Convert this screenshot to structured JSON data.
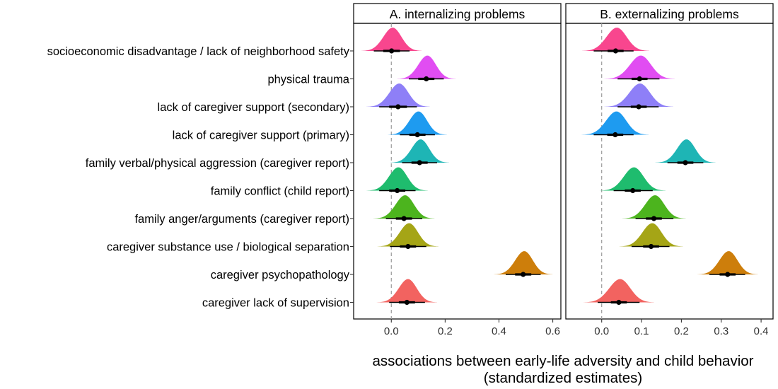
{
  "chart_data": {
    "type": "ridgeline",
    "xlabel": [
      "associations between early-life adversity and child behavior",
      "(standardized estimates)"
    ],
    "categories": [
      "socioeconomic disadvantage / lack of neighborhood safety",
      "physical trauma",
      "lack of caregiver support (secondary)",
      "lack of caregiver support (primary)",
      "family verbal/physical aggression (caregiver report)",
      "family conflict (child report)",
      "family anger/arguments (caregiver report)",
      "caregiver substance use / biological separation",
      "caregiver psychopathology",
      "caregiver lack of supervision"
    ],
    "colors": [
      "#F8468E",
      "#E14DF2",
      "#8E7FF7",
      "#1E9BF0",
      "#1EB5B5",
      "#1FBC6E",
      "#4CB41E",
      "#A5A516",
      "#CD7E0B",
      "#F26360"
    ],
    "panels": [
      {
        "title": "A. internalizing problems",
        "xlim": [
          -0.14,
          0.63
        ],
        "ticks": [
          0.0,
          0.2,
          0.4,
          0.6
        ],
        "tick_labels": [
          "0.0",
          "0.2",
          "0.4",
          "0.6"
        ],
        "estimates": [
          0.001,
          0.13,
          0.025,
          0.097,
          0.105,
          0.022,
          0.047,
          0.062,
          0.49,
          0.058
        ],
        "ci66": [
          [
            -0.03,
            0.032
          ],
          [
            0.1,
            0.16
          ],
          [
            -0.008,
            0.058
          ],
          [
            0.067,
            0.127
          ],
          [
            0.075,
            0.135
          ],
          [
            -0.008,
            0.052
          ],
          [
            0.017,
            0.077
          ],
          [
            0.032,
            0.092
          ],
          [
            0.46,
            0.52
          ],
          [
            0.028,
            0.088
          ]
        ],
        "ci95": [
          [
            -0.065,
            0.068
          ],
          [
            0.065,
            0.195
          ],
          [
            -0.045,
            0.095
          ],
          [
            0.032,
            0.162
          ],
          [
            0.04,
            0.17
          ],
          [
            -0.045,
            0.09
          ],
          [
            -0.02,
            0.115
          ],
          [
            -0.005,
            0.13
          ],
          [
            0.425,
            0.555
          ],
          [
            -0.008,
            0.125
          ]
        ]
      },
      {
        "title": "B. externalizing problems",
        "xlim": [
          -0.09,
          0.43
        ],
        "ticks": [
          0.0,
          0.1,
          0.2,
          0.3,
          0.4
        ],
        "tick_labels": [
          "0.0",
          "0.1",
          "0.2",
          "0.3",
          "0.4"
        ],
        "estimates": [
          0.035,
          0.095,
          0.093,
          0.034,
          0.21,
          0.078,
          0.131,
          0.124,
          0.316,
          0.043
        ],
        "ci66": [
          [
            0.015,
            0.055
          ],
          [
            0.075,
            0.115
          ],
          [
            0.073,
            0.113
          ],
          [
            0.014,
            0.054
          ],
          [
            0.19,
            0.23
          ],
          [
            0.058,
            0.098
          ],
          [
            0.111,
            0.151
          ],
          [
            0.104,
            0.144
          ],
          [
            0.296,
            0.336
          ],
          [
            0.023,
            0.063
          ]
        ],
        "ci95": [
          [
            -0.02,
            0.08
          ],
          [
            0.04,
            0.145
          ],
          [
            0.04,
            0.143
          ],
          [
            -0.02,
            0.08
          ],
          [
            0.165,
            0.255
          ],
          [
            0.03,
            0.128
          ],
          [
            0.085,
            0.18
          ],
          [
            0.075,
            0.17
          ],
          [
            0.27,
            0.36
          ],
          [
            -0.01,
            0.095
          ]
        ]
      }
    ]
  }
}
